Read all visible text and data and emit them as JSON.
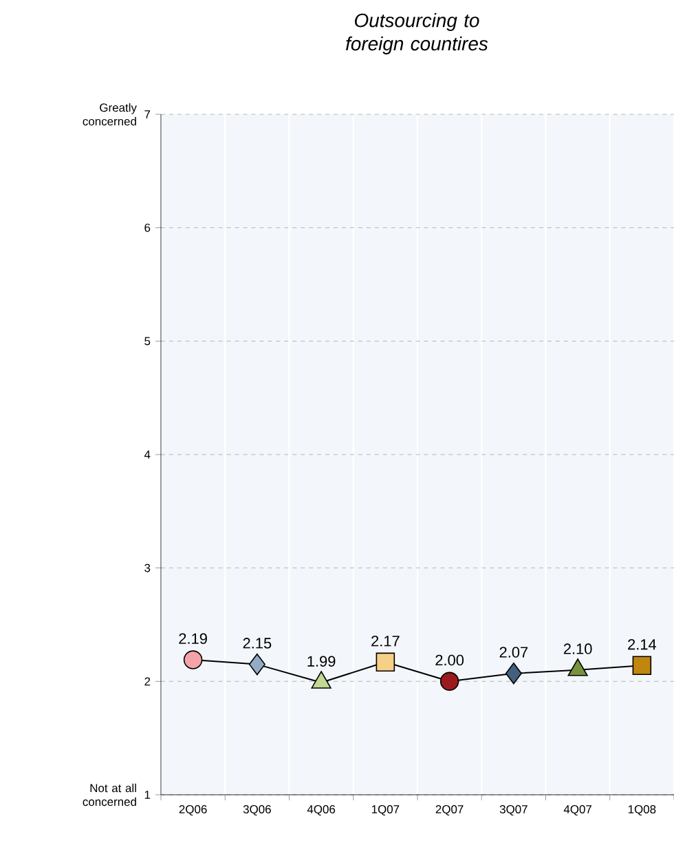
{
  "chart_data": {
    "type": "line",
    "title": "Outsourcing to foreign countires",
    "categories": [
      "2Q06",
      "3Q06",
      "4Q06",
      "1Q07",
      "2Q07",
      "3Q07",
      "4Q07",
      "1Q08"
    ],
    "series": [
      {
        "color": "#000000",
        "values": [
          2.19,
          2.15,
          1.99,
          2.17,
          2.0,
          2.07,
          2.1,
          2.14
        ],
        "value_labels": [
          "2.19",
          "2.15",
          "1.99",
          "2.17",
          "2.00",
          "2.07",
          "2.10",
          "2.14"
        ],
        "colors": [
          "#f2a4a8",
          "#94abc4",
          "#c2d894",
          "#f7d088",
          "#9a1a1e",
          "#44607e",
          "#76943c",
          "#c0860e"
        ],
        "marker": [
          "circle",
          "diamond",
          "triangle",
          "square",
          "circle",
          "diamond",
          "triangle",
          "square"
        ]
      }
    ],
    "ylim": [
      1,
      7
    ],
    "yticks": [
      1,
      2,
      3,
      4,
      5,
      6,
      7
    ],
    "grid": "y",
    "annotations": [
      "Greatly concerned",
      "Not at all concerned"
    ]
  }
}
